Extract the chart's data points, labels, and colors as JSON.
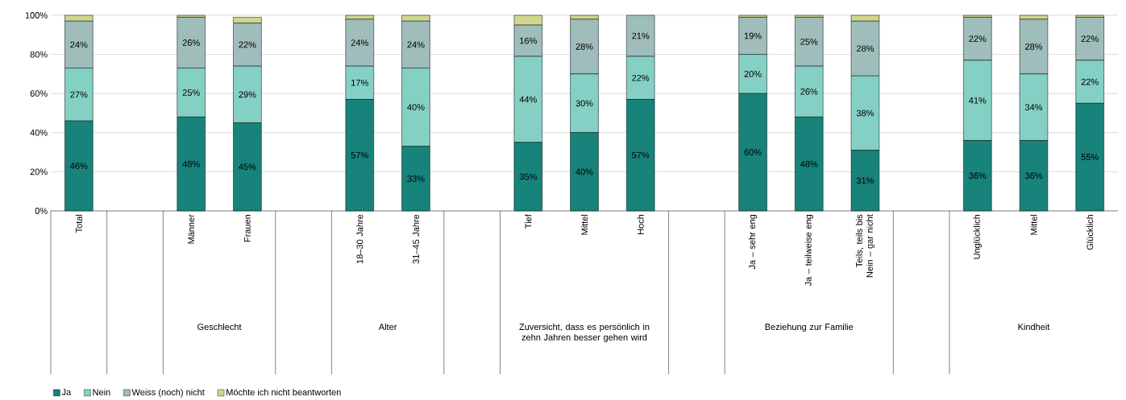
{
  "chart_data": {
    "type": "bar",
    "stacked": true,
    "categories": [
      "Total",
      null,
      "Männer",
      "Frauen",
      null,
      "18–30 Jahre",
      "31–45 Jahre",
      null,
      "Tief",
      "Mittel",
      "Hoch",
      null,
      "Ja – sehr eng",
      "Ja – teilweise eng",
      "Teils, teils bis Nein – gar nicht",
      null,
      "Unglücklich",
      "Mittel",
      "Glücklich"
    ],
    "series": [
      {
        "name": "Ja",
        "color": "#17837a",
        "values": [
          46,
          null,
          48,
          45,
          null,
          57,
          33,
          null,
          35,
          40,
          57,
          null,
          60,
          48,
          31,
          null,
          36,
          36,
          55
        ],
        "value_labels": [
          "46%",
          null,
          "48%",
          "45%",
          null,
          "57%",
          "33%",
          null,
          "35%",
          "40%",
          "57%",
          null,
          "60%",
          "48%",
          "31%",
          null,
          "36%",
          "36%",
          "55%"
        ]
      },
      {
        "name": "Nein",
        "color": "#85d0c4",
        "values": [
          27,
          null,
          25,
          29,
          null,
          17,
          40,
          null,
          44,
          30,
          22,
          null,
          20,
          26,
          38,
          null,
          41,
          34,
          22
        ],
        "value_labels": [
          "27%",
          null,
          "25%",
          "29%",
          null,
          "17%",
          "40%",
          null,
          "44%",
          "30%",
          "22%",
          null,
          "20%",
          "26%",
          "38%",
          null,
          "41%",
          "34%",
          "22%"
        ]
      },
      {
        "name": "Weiss (noch) nicht",
        "color": "#9fbdba",
        "values": [
          24,
          null,
          26,
          22,
          null,
          24,
          24,
          null,
          16,
          28,
          21,
          null,
          19,
          25,
          28,
          null,
          22,
          28,
          22
        ],
        "value_labels": [
          "24%",
          null,
          "26%",
          "22%",
          null,
          "24%",
          "24%",
          null,
          "16%",
          "28%",
          "21%",
          null,
          "19%",
          "25%",
          "28%",
          null,
          "22%",
          "28%",
          "22%"
        ]
      },
      {
        "name": "Möchte ich nicht beantworten",
        "color": "#cfd68d",
        "values": [
          3,
          null,
          1,
          3,
          null,
          2,
          3,
          null,
          5,
          2,
          0,
          null,
          1,
          1,
          3,
          null,
          1,
          2,
          1
        ]
      }
    ],
    "ylim": [
      0,
      100
    ],
    "yticks": [
      {
        "value": 0,
        "label": "0%"
      },
      {
        "value": 20,
        "label": "20%"
      },
      {
        "value": 40,
        "label": "40%"
      },
      {
        "value": 60,
        "label": "60%"
      },
      {
        "value": 80,
        "label": "80%"
      },
      {
        "value": 100,
        "label": "100%"
      }
    ],
    "grid": "y",
    "legend": "bottom left",
    "annotations": [
      "Geschlecht",
      "Alter",
      "Zuversicht, dass es persönlich in zehn Jahren besser gehen wird",
      "Beziehung zur Familie",
      "Kindheit"
    ]
  }
}
